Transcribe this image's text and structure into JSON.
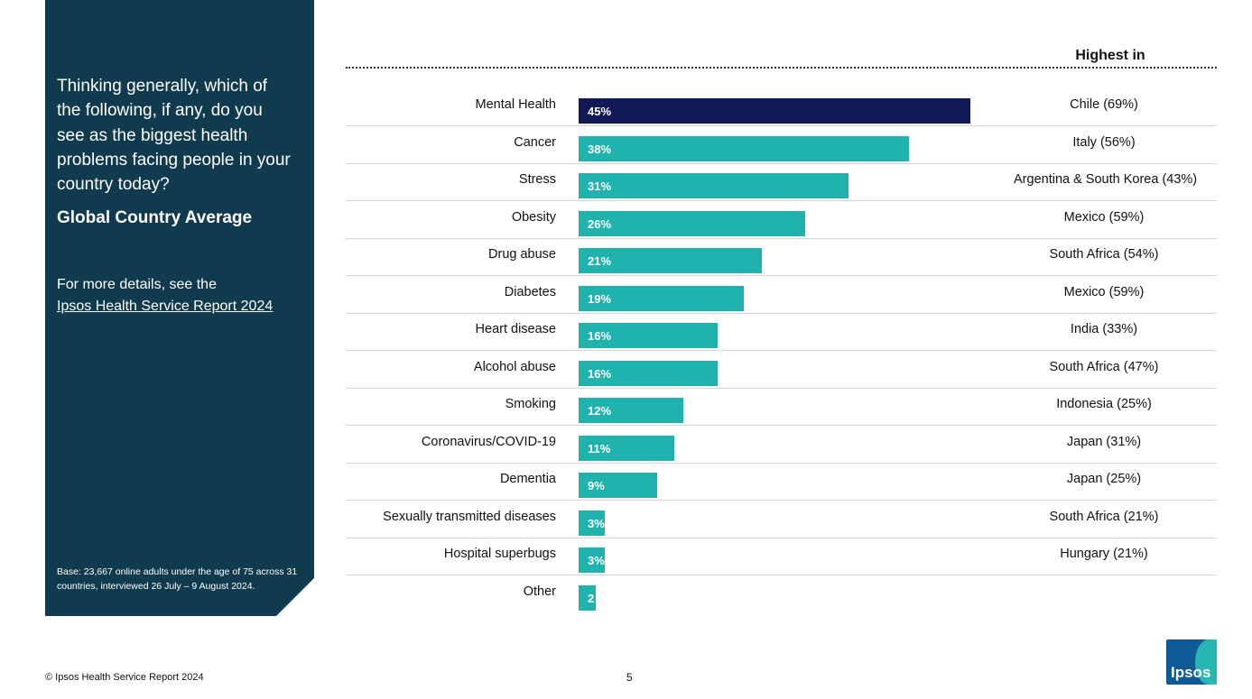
{
  "panel": {
    "question": "Thinking generally, which of the following, if any, do you see as the biggest health problems facing people in your country today?",
    "subtitle": "Global Country Average",
    "more_text": "For more details, see the",
    "more_link": "Ipsos Health Service Report 2024",
    "base": "Base: 23,667 online adults under the age of 75 across 31 countries, interviewed 26 July – 9 August 2024."
  },
  "highest_header": "Highest in",
  "chart_data": {
    "type": "bar",
    "orientation": "horizontal",
    "categories": [
      "Mental Health",
      "Cancer",
      "Stress",
      "Obesity",
      "Drug abuse",
      "Diabetes",
      "Heart disease",
      "Alcohol abuse",
      "Smoking",
      "Coronavirus/COVID-19",
      "Dementia",
      "Sexually transmitted diseases",
      "Hospital superbugs",
      "Other"
    ],
    "values": [
      45,
      38,
      31,
      26,
      21,
      19,
      16,
      16,
      12,
      11,
      9,
      3,
      3,
      2
    ],
    "value_labels": [
      "45%",
      "38%",
      "31%",
      "26%",
      "21%",
      "19%",
      "16%",
      "16%",
      "12%",
      "11%",
      "9%",
      "3%",
      "3%",
      "2"
    ],
    "highest_in": [
      "Chile (69%)",
      "Italy (56%)",
      "Argentina & South Korea (43%)",
      "Mexico (59%)",
      "South Africa (54%)",
      "Mexico (59%)",
      "India (33%)",
      "South Africa (47%)",
      "Indonesia (25%)",
      "Japan (31%)",
      "Japan (25%)",
      "South Africa (21%)",
      "Hungary (21%)",
      ""
    ],
    "xlim": [
      0,
      45
    ],
    "colors": {
      "highlight": "#111a56",
      "bar": "#20b2ad"
    }
  },
  "footer": {
    "copyright": "© Ipsos Health Service Report 2024",
    "page_number": "5",
    "logo_text": "Ipsos"
  }
}
